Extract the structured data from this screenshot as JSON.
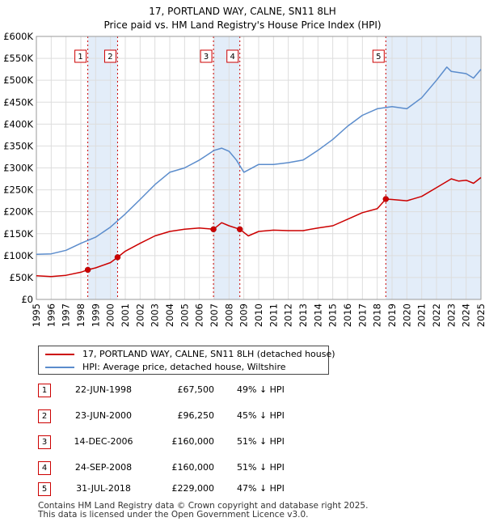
{
  "title_line1": "17, PORTLAND WAY, CALNE, SN11 8LH",
  "title_line2": "Price paid vs. HM Land Registry's House Price Index (HPI)",
  "legend": {
    "property": "17, PORTLAND WAY, CALNE, SN11 8LH (detached house)",
    "hpi": "HPI: Average price, detached house, Wiltshire"
  },
  "colors": {
    "property": "#cc0000",
    "hpi": "#5b8ccc",
    "shade": "#dce8f8",
    "marker": "#cc0000",
    "grid": "#dddddd"
  },
  "sales": [
    {
      "num": "1",
      "date": "22-JUN-1998",
      "price": "£67,500",
      "hpi": "49% ↓ HPI"
    },
    {
      "num": "2",
      "date": "23-JUN-2000",
      "price": "£96,250",
      "hpi": "45% ↓ HPI"
    },
    {
      "num": "3",
      "date": "14-DEC-2006",
      "price": "£160,000",
      "hpi": "51% ↓ HPI"
    },
    {
      "num": "4",
      "date": "24-SEP-2008",
      "price": "£160,000",
      "hpi": "51% ↓ HPI"
    },
    {
      "num": "5",
      "date": "31-JUL-2018",
      "price": "£229,000",
      "hpi": "47% ↓ HPI"
    }
  ],
  "footer_line1": "Contains HM Land Registry data © Crown copyright and database right 2025.",
  "footer_line2": "This data is licensed under the Open Government Licence v3.0.",
  "chart_data": {
    "type": "line",
    "xlim": [
      1995,
      2025
    ],
    "ylim": [
      0,
      600000
    ],
    "yticks": [
      0,
      50000,
      100000,
      150000,
      200000,
      250000,
      300000,
      350000,
      400000,
      450000,
      500000,
      550000,
      600000
    ],
    "ytick_labels": [
      "£0",
      "£50K",
      "£100K",
      "£150K",
      "£200K",
      "£250K",
      "£300K",
      "£350K",
      "£400K",
      "£450K",
      "£500K",
      "£550K",
      "£600K"
    ],
    "xticks": [
      1995,
      1996,
      1997,
      1998,
      1999,
      2000,
      2001,
      2002,
      2003,
      2004,
      2005,
      2006,
      2007,
      2008,
      2009,
      2010,
      2011,
      2012,
      2013,
      2014,
      2015,
      2016,
      2017,
      2018,
      2019,
      2020,
      2021,
      2022,
      2023,
      2024,
      2025
    ],
    "grid": true,
    "legend_position": "below",
    "shaded_periods": [
      [
        1998.47,
        2000.48
      ],
      [
        2006.95,
        2008.73
      ],
      [
        2018.58,
        2025
      ]
    ],
    "sale_markers": [
      {
        "label": "1",
        "x": 1998.47,
        "y": 67500
      },
      {
        "label": "2",
        "x": 2000.48,
        "y": 96250
      },
      {
        "label": "3",
        "x": 2006.95,
        "y": 160000
      },
      {
        "label": "4",
        "x": 2008.73,
        "y": 160000
      },
      {
        "label": "5",
        "x": 2018.58,
        "y": 229000
      }
    ],
    "series": [
      {
        "name": "17, PORTLAND WAY, CALNE, SN11 8LH (detached house)",
        "x": [
          1995,
          1996,
          1997,
          1998,
          1998.47,
          1999,
          2000,
          2000.48,
          2001,
          2002,
          2003,
          2004,
          2005,
          2006,
          2006.95,
          2007.5,
          2008,
          2008.73,
          2009.3,
          2010,
          2011,
          2012,
          2013,
          2014,
          2015,
          2016,
          2017,
          2018,
          2018.58,
          2019,
          2020,
          2021,
          2022,
          2023,
          2023.5,
          2024,
          2024.5,
          2025
        ],
        "y": [
          54000,
          52000,
          55000,
          62000,
          67500,
          72000,
          84000,
          96250,
          110000,
          128000,
          145000,
          155000,
          160000,
          163000,
          160000,
          175000,
          168000,
          160000,
          145000,
          155000,
          158000,
          157000,
          157000,
          163000,
          168000,
          183000,
          198000,
          207000,
          229000,
          228000,
          225000,
          235000,
          255000,
          275000,
          270000,
          272000,
          265000,
          278000
        ]
      },
      {
        "name": "HPI: Average price, detached house, Wiltshire",
        "x": [
          1995,
          1996,
          1997,
          1998,
          1999,
          2000,
          2001,
          2002,
          2003,
          2004,
          2005,
          2006,
          2007,
          2007.5,
          2008,
          2008.5,
          2009,
          2010,
          2011,
          2012,
          2013,
          2014,
          2015,
          2016,
          2017,
          2018,
          2019,
          2020,
          2021,
          2022,
          2022.7,
          2023,
          2024,
          2024.5,
          2025
        ],
        "y": [
          103000,
          104000,
          112000,
          128000,
          142000,
          165000,
          195000,
          228000,
          262000,
          290000,
          300000,
          318000,
          340000,
          345000,
          338000,
          318000,
          290000,
          308000,
          308000,
          312000,
          318000,
          340000,
          365000,
          395000,
          420000,
          435000,
          440000,
          435000,
          460000,
          500000,
          530000,
          520000,
          515000,
          505000,
          525000
        ]
      }
    ]
  }
}
